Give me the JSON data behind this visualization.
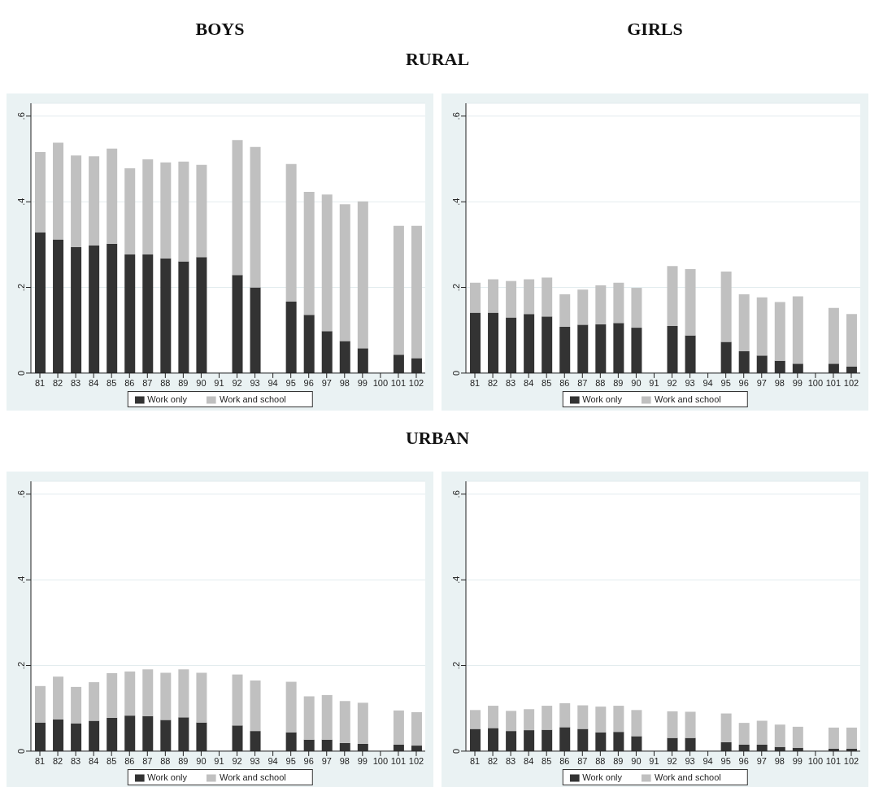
{
  "chart_data": [
    {
      "type": "bar",
      "title": "BOYS",
      "annotations": [
        "RURAL"
      ],
      "stacked": true,
      "legend": "bottom",
      "grid": "y",
      "categories": [
        "81",
        "82",
        "83",
        "84",
        "85",
        "86",
        "87",
        "88",
        "89",
        "90",
        "91",
        "92",
        "93",
        "94",
        "95",
        "96",
        "97",
        "98",
        "99",
        "100",
        "101",
        "102"
      ],
      "ylim": [
        0,
        0.63
      ],
      "yticks": [
        {
          "value": 0,
          "label": "0"
        },
        {
          "value": 0.2,
          "label": ".2"
        },
        {
          "value": 0.4,
          "label": ".4"
        },
        {
          "value": 0.6,
          "label": ".6"
        }
      ],
      "series": [
        {
          "name": "Work only",
          "color": "#333333",
          "values": [
            0.328,
            0.312,
            0.294,
            0.298,
            0.302,
            0.277,
            0.277,
            0.268,
            0.261,
            0.271,
            null,
            0.229,
            0.2,
            null,
            0.167,
            0.136,
            0.098,
            0.075,
            0.058,
            null,
            0.043,
            0.035
          ]
        },
        {
          "name": "Work and school",
          "color": "#c0c0c0",
          "values": [
            0.188,
            0.226,
            0.214,
            0.208,
            0.222,
            0.201,
            0.222,
            0.224,
            0.233,
            0.215,
            null,
            0.315,
            0.328,
            null,
            0.321,
            0.287,
            0.319,
            0.319,
            0.343,
            null,
            0.301,
            0.309
          ]
        }
      ]
    },
    {
      "type": "bar",
      "title": "GIRLS",
      "stacked": true,
      "legend": "bottom",
      "grid": "y",
      "categories": [
        "81",
        "82",
        "83",
        "84",
        "85",
        "86",
        "87",
        "88",
        "89",
        "90",
        "91",
        "92",
        "93",
        "94",
        "95",
        "96",
        "97",
        "98",
        "99",
        "100",
        "101",
        "102"
      ],
      "ylim": [
        0,
        0.63
      ],
      "yticks": [
        {
          "value": 0,
          "label": "0"
        },
        {
          "value": 0.2,
          "label": ".2"
        },
        {
          "value": 0.4,
          "label": ".4"
        },
        {
          "value": 0.6,
          "label": ".6"
        }
      ],
      "series": [
        {
          "name": "Work only",
          "color": "#333333",
          "values": [
            0.141,
            0.141,
            0.13,
            0.138,
            0.132,
            0.108,
            0.113,
            0.114,
            0.117,
            0.106,
            null,
            0.11,
            0.088,
            null,
            0.073,
            0.051,
            0.041,
            0.029,
            0.022,
            null,
            0.022,
            0.015
          ]
        },
        {
          "name": "Work and school",
          "color": "#c0c0c0",
          "values": [
            0.07,
            0.078,
            0.085,
            0.081,
            0.091,
            0.076,
            0.082,
            0.091,
            0.094,
            0.093,
            null,
            0.14,
            0.155,
            null,
            0.164,
            0.133,
            0.136,
            0.137,
            0.157,
            null,
            0.13,
            0.123
          ]
        }
      ]
    },
    {
      "type": "bar",
      "annotations": [
        "URBAN"
      ],
      "stacked": true,
      "legend": "bottom",
      "grid": "y",
      "categories": [
        "81",
        "82",
        "83",
        "84",
        "85",
        "86",
        "87",
        "88",
        "89",
        "90",
        "91",
        "92",
        "93",
        "94",
        "95",
        "96",
        "97",
        "98",
        "99",
        "100",
        "101",
        "102"
      ],
      "ylim": [
        0,
        0.63
      ],
      "yticks": [
        {
          "value": 0,
          "label": "0"
        },
        {
          "value": 0.2,
          "label": ".2"
        },
        {
          "value": 0.4,
          "label": ".4"
        },
        {
          "value": 0.6,
          "label": ".6"
        }
      ],
      "series": [
        {
          "name": "Work only",
          "color": "#333333",
          "values": [
            0.067,
            0.074,
            0.065,
            0.071,
            0.078,
            0.083,
            0.082,
            0.073,
            0.079,
            0.067,
            null,
            0.06,
            0.047,
            null,
            0.044,
            0.027,
            0.027,
            0.019,
            0.017,
            null,
            0.015,
            0.013
          ]
        },
        {
          "name": "Work and school",
          "color": "#c0c0c0",
          "values": [
            0.085,
            0.1,
            0.085,
            0.09,
            0.104,
            0.103,
            0.109,
            0.11,
            0.112,
            0.116,
            null,
            0.119,
            0.118,
            null,
            0.118,
            0.101,
            0.104,
            0.098,
            0.096,
            null,
            0.08,
            0.078
          ]
        }
      ]
    },
    {
      "type": "bar",
      "stacked": true,
      "legend": "bottom",
      "grid": "y",
      "categories": [
        "81",
        "82",
        "83",
        "84",
        "85",
        "86",
        "87",
        "88",
        "89",
        "90",
        "91",
        "92",
        "93",
        "94",
        "95",
        "96",
        "97",
        "98",
        "99",
        "100",
        "101",
        "102"
      ],
      "ylim": [
        0,
        0.63
      ],
      "yticks": [
        {
          "value": 0,
          "label": "0"
        },
        {
          "value": 0.2,
          "label": ".2"
        },
        {
          "value": 0.4,
          "label": ".4"
        },
        {
          "value": 0.6,
          "label": ".6"
        }
      ],
      "series": [
        {
          "name": "Work only",
          "color": "#333333",
          "values": [
            0.052,
            0.054,
            0.047,
            0.049,
            0.05,
            0.056,
            0.052,
            0.044,
            0.045,
            0.035,
            null,
            0.031,
            0.031,
            null,
            0.021,
            0.015,
            0.015,
            0.01,
            0.008,
            null,
            0.006,
            0.006
          ]
        },
        {
          "name": "Work and school",
          "color": "#c0c0c0",
          "values": [
            0.044,
            0.052,
            0.047,
            0.049,
            0.056,
            0.056,
            0.055,
            0.06,
            0.061,
            0.061,
            null,
            0.062,
            0.061,
            null,
            0.067,
            0.051,
            0.056,
            0.052,
            0.049,
            null,
            0.049,
            0.049
          ]
        }
      ]
    }
  ]
}
